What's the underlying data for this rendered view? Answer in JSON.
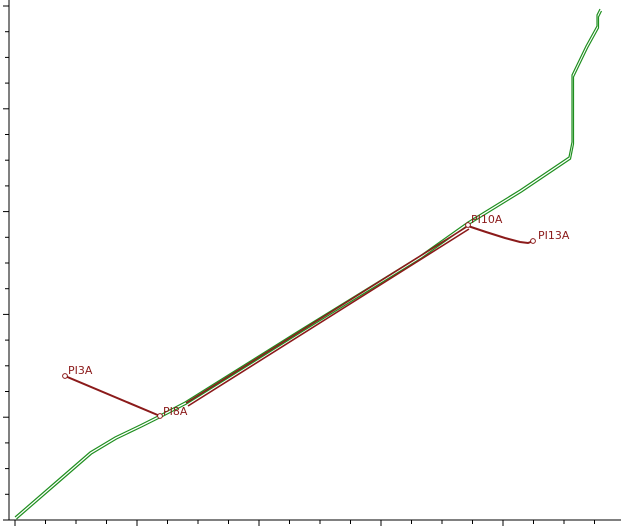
{
  "colors": {
    "background": "#ffffff",
    "axis": "#000000",
    "green_path": "#1f8f1f",
    "red_path": "#8b1a1a",
    "point_label": "#8b1a1a"
  },
  "labels": {
    "pi3a": "PI3A",
    "pi8a": "PI8A",
    "pi10a": "PI10A",
    "pi13a": "PI13A"
  }
}
